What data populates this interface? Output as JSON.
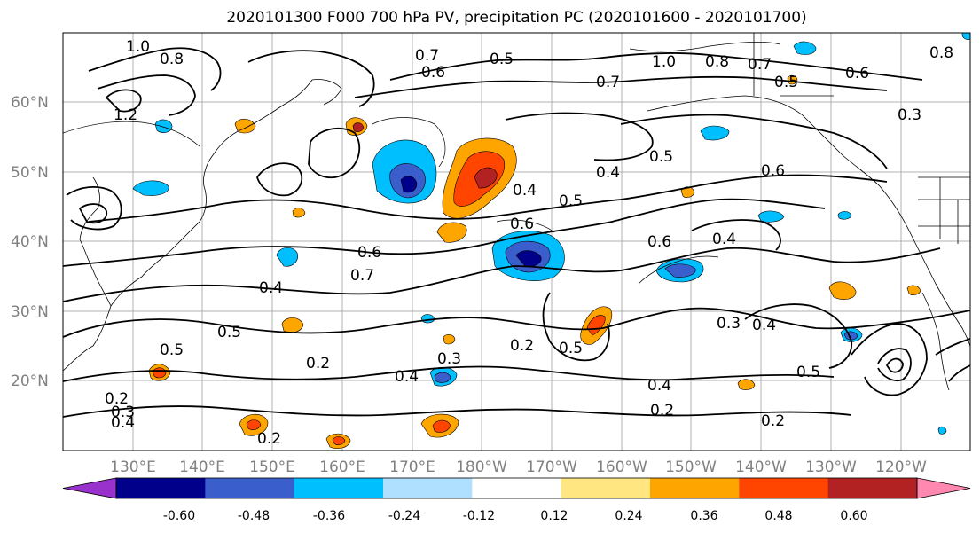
{
  "title": "2020101300 F000 700 hPa PV, precipitation PC (2020101600 - 2020101700)",
  "map": {
    "lat_ticks": [
      "60°N",
      "50°N",
      "40°N",
      "30°N",
      "20°N"
    ],
    "lon_ticks": [
      "130°E",
      "140°E",
      "150°E",
      "160°E",
      "170°E",
      "180°W",
      "170°W",
      "160°W",
      "150°W",
      "140°W",
      "130°W",
      "120°W"
    ],
    "extent": {
      "lon_min": 120,
      "lon_max": 250,
      "lat_min": 10,
      "lat_max": 70
    },
    "contour_labels": [
      "1.0",
      "0.8",
      "1.2",
      "0.7",
      "0.6",
      "0.5",
      "1.0",
      "0.8",
      "0.7",
      "0.6",
      "0.5",
      "0.8",
      "0.7",
      "0.3",
      "0.4",
      "0.5",
      "0.6",
      "0.4",
      "0.5",
      "0.6",
      "0.6",
      "0.4",
      "0.6",
      "0.7",
      "0.4",
      "0.5",
      "0.3",
      "0.4",
      "0.2",
      "0.5",
      "0.2",
      "0.4",
      "0.3",
      "0.2",
      "0.5",
      "0.4",
      "0.2",
      "0.2",
      "0.5",
      "0.3",
      "0.4",
      "0.2"
    ],
    "shading_colors": {
      "neg_strong": "#00008b",
      "neg_mid": "#3a5fcd",
      "neg_light": "#00bfff",
      "pos_light": "#ffe680",
      "pos_mid": "#ffa500",
      "pos_strong": "#ff4500",
      "pos_max": "#b22222"
    }
  },
  "colorbar": {
    "ticks": [
      "-0.60",
      "-0.48",
      "-0.36",
      "-0.24",
      "-0.12",
      "0.12",
      "0.24",
      "0.36",
      "0.48",
      "0.60"
    ],
    "colors": [
      "#9932cc",
      "#00008b",
      "#3a5fcd",
      "#00bfff",
      "#b0e0ff",
      "#ffffff",
      "#ffe680",
      "#ffa500",
      "#ff4500",
      "#b22222",
      "#ff88b0"
    ]
  }
}
